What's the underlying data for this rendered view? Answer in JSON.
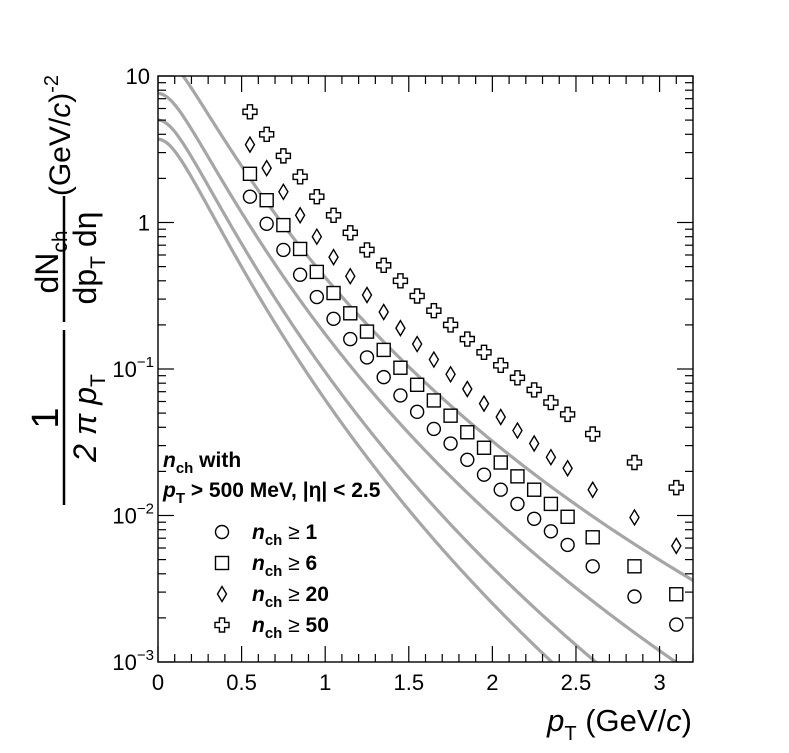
{
  "chart_data": {
    "type": "scatter",
    "title": "",
    "xlabel": {
      "var": "p",
      "sub": "T",
      "unit_pre": " (GeV/",
      "unit_var": "c",
      "unit_post": ")"
    },
    "ylabel": {
      "numerator": "1",
      "denominator": "2 π p",
      "den_sub": "T",
      "frac_top_pre": "dN",
      "frac_top_sub": "ch",
      "frac_bottom_pre": "dp",
      "frac_bottom_sub": "T",
      "frac_bottom_post": " dη",
      "unit_pre": "(GeV/",
      "unit_var": "c",
      "unit_post": ")",
      "unit_exp": "-2"
    },
    "xlim": [
      0,
      3.2
    ],
    "ylim": [
      0.001,
      10
    ],
    "yscale": "log",
    "x_ticks": [
      "0",
      "0.5",
      "1",
      "1.5",
      "2",
      "2.5",
      "3"
    ],
    "x_tick_values": [
      0,
      0.5,
      1,
      1.5,
      2,
      2.5,
      3
    ],
    "y_ticks": [
      {
        "value": 10,
        "text": "10"
      },
      {
        "value": 1,
        "text": "1"
      },
      {
        "value": 0.1,
        "base": "10",
        "exp": "−1"
      },
      {
        "value": 0.01,
        "base": "10",
        "exp": "−2"
      },
      {
        "value": 0.001,
        "base": "10",
        "exp": "−3"
      }
    ],
    "legend_header": {
      "line1_var": "n",
      "line1_sub": "ch",
      "line1_post": " with",
      "line2_var": "p",
      "line2_sub": "T",
      "line2_post": " > 500 MeV, |η| < 2.5"
    },
    "series": [
      {
        "name": "n_ch ≥ 1",
        "legend_var": "n",
        "legend_sub": "ch",
        "legend_rel": " ≥ ",
        "legend_num": "1",
        "marker": "circle",
        "x": [
          0.55,
          0.65,
          0.75,
          0.85,
          0.95,
          1.05,
          1.15,
          1.25,
          1.35,
          1.45,
          1.55,
          1.65,
          1.75,
          1.85,
          1.95,
          2.05,
          2.15,
          2.25,
          2.35,
          2.45,
          2.6,
          2.85,
          3.1
        ],
        "y": [
          1.5,
          0.98,
          0.65,
          0.44,
          0.31,
          0.22,
          0.16,
          0.12,
          0.088,
          0.066,
          0.051,
          0.039,
          0.031,
          0.024,
          0.019,
          0.015,
          0.012,
          0.0095,
          0.0078,
          0.0063,
          0.0045,
          0.0028,
          0.0018
        ]
      },
      {
        "name": "n_ch ≥ 6",
        "legend_var": "n",
        "legend_sub": "ch",
        "legend_rel": " ≥ ",
        "legend_num": "6",
        "marker": "square",
        "x": [
          0.55,
          0.65,
          0.75,
          0.85,
          0.95,
          1.05,
          1.15,
          1.25,
          1.35,
          1.45,
          1.55,
          1.65,
          1.75,
          1.85,
          1.95,
          2.05,
          2.15,
          2.25,
          2.35,
          2.45,
          2.6,
          2.85,
          3.1
        ],
        "y": [
          2.15,
          1.42,
          0.96,
          0.66,
          0.46,
          0.33,
          0.24,
          0.18,
          0.135,
          0.102,
          0.078,
          0.061,
          0.048,
          0.037,
          0.029,
          0.023,
          0.0185,
          0.015,
          0.012,
          0.0098,
          0.0071,
          0.0045,
          0.0029
        ]
      },
      {
        "name": "n_ch ≥ 20",
        "legend_var": "n",
        "legend_sub": "ch",
        "legend_rel": " ≥ ",
        "legend_num": "20",
        "marker": "diamond",
        "x": [
          0.55,
          0.65,
          0.75,
          0.85,
          0.95,
          1.05,
          1.15,
          1.25,
          1.35,
          1.45,
          1.55,
          1.65,
          1.75,
          1.85,
          1.95,
          2.05,
          2.15,
          2.25,
          2.35,
          2.45,
          2.6,
          2.85,
          3.1
        ],
        "y": [
          3.4,
          2.35,
          1.62,
          1.12,
          0.8,
          0.58,
          0.43,
          0.32,
          0.245,
          0.19,
          0.148,
          0.116,
          0.092,
          0.073,
          0.058,
          0.047,
          0.038,
          0.031,
          0.025,
          0.021,
          0.015,
          0.0097,
          0.0062
        ]
      },
      {
        "name": "n_ch ≥ 50",
        "legend_var": "n",
        "legend_sub": "ch",
        "legend_rel": " ≥ ",
        "legend_num": "50",
        "marker": "cross",
        "x": [
          0.55,
          0.65,
          0.75,
          0.85,
          0.95,
          1.05,
          1.15,
          1.25,
          1.35,
          1.45,
          1.55,
          1.65,
          1.75,
          1.85,
          1.95,
          2.05,
          2.15,
          2.25,
          2.35,
          2.45,
          2.6,
          2.85,
          3.1
        ],
        "y": [
          5.7,
          4.0,
          2.85,
          2.05,
          1.5,
          1.12,
          0.85,
          0.65,
          0.51,
          0.4,
          0.315,
          0.25,
          0.2,
          0.16,
          0.13,
          0.106,
          0.087,
          0.072,
          0.059,
          0.049,
          0.036,
          0.023,
          0.0155
        ]
      }
    ],
    "fit_curves": [
      {
        "A": 3.7,
        "n": 9.5,
        "T": 0.17,
        "m": 0.13957
      },
      {
        "A": 5.0,
        "n": 9.0,
        "T": 0.175,
        "m": 0.13957
      },
      {
        "A": 7.6,
        "n": 8.0,
        "T": 0.18,
        "m": 0.13957
      },
      {
        "A": 14.0,
        "n": 6.8,
        "T": 0.19,
        "m": 0.13957
      }
    ],
    "colors": {
      "markers": "#000000",
      "fit": "#a6a6a6",
      "axis": "#000000"
    }
  }
}
